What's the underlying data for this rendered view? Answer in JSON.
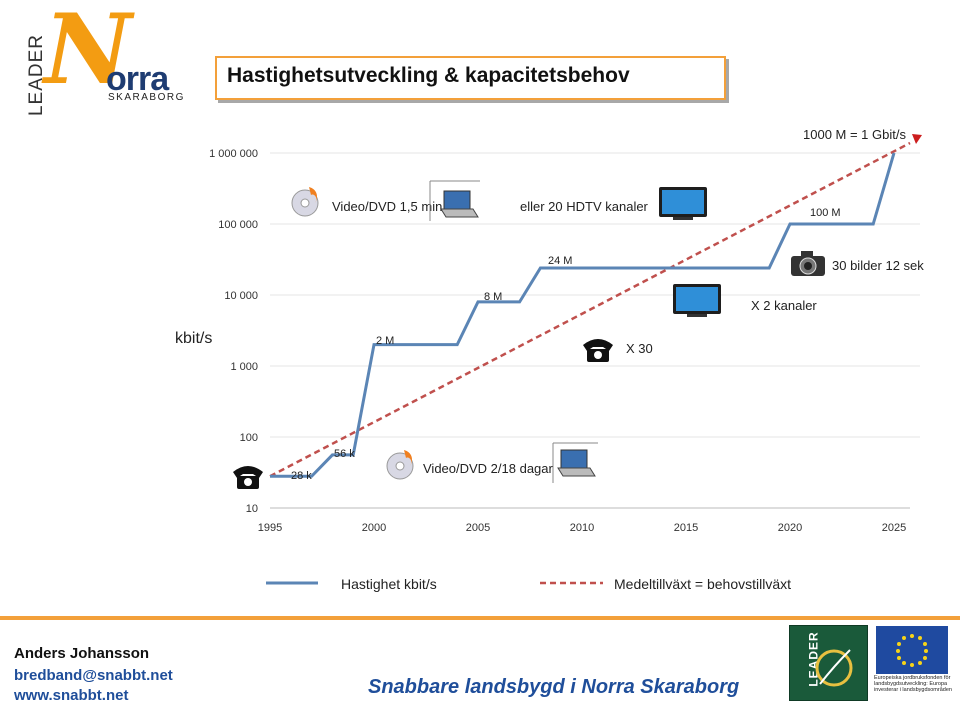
{
  "logo": {
    "leader": "LEADER",
    "n": "N",
    "orra": "orra",
    "skaraborg": "SKARABORG"
  },
  "title": "Hastighetsutveckling & kapacitetsbehov",
  "chart_data": {
    "type": "line",
    "ylabel": "kbit/s",
    "yscale": "log",
    "ylim": [
      10,
      1000000
    ],
    "xlim": [
      1995,
      2025
    ],
    "x_ticks": [
      "1995",
      "2000",
      "2005",
      "2010",
      "2015",
      "2020",
      "2025"
    ],
    "y_ticks": [
      "10",
      "100",
      "1 000",
      "10 000",
      "100 000",
      "1 000 000"
    ],
    "grid": "horizontal",
    "legend_position": "bottom",
    "series": [
      {
        "name": "Hastighet kbit/s",
        "color": "#5b85b5",
        "style": "solid",
        "points": [
          [
            1995,
            28
          ],
          [
            1997,
            28
          ],
          [
            1998,
            56
          ],
          [
            1999,
            56
          ],
          [
            2000,
            2000
          ],
          [
            2004,
            2000
          ],
          [
            2005,
            8000
          ],
          [
            2007,
            8000
          ],
          [
            2008,
            24000
          ],
          [
            2019,
            24000
          ],
          [
            2020,
            100000
          ],
          [
            2024,
            100000
          ],
          [
            2025,
            1000000
          ]
        ]
      },
      {
        "name": "Medeltillväxt = behovstillväxt",
        "color": "#c0504d",
        "style": "dashed",
        "points": [
          [
            1995,
            28
          ],
          [
            2025,
            1000000
          ]
        ]
      }
    ],
    "annotations": {
      "p28k": "28 k",
      "p56k": "56 k",
      "p2m": "2 M",
      "p8m": "8 M",
      "p24m": "24 M",
      "p100m": "100 M",
      "p1000m": "1000 M = 1 Gbit/s",
      "video15": "Video/DVD 1,5 min",
      "hdtv20": "eller 20 HDTV kanaler",
      "bilder": "30 bilder 12 sek",
      "x2": "X 2 kanaler",
      "x30": "X 30",
      "video218": "Video/DVD  2/18 dagar"
    },
    "icons": [
      "cd-icon",
      "laptop-icon",
      "tv-icon",
      "camera-icon",
      "telephone-icon"
    ]
  },
  "footer": {
    "author": "Anders Johansson",
    "email": "bredband@snabbt.net",
    "web": "www.snabbt.net",
    "slogan": "Snabbare landsbygd i Norra Skaraborg",
    "badge": "LEADER",
    "eu_text": "Europeiska jordbruksfonden för landsbygdsutveckling: Europa investerar i landsbygdsområden"
  },
  "colors": {
    "accent": "#f3a03a",
    "brand_blue": "#1f4e9a",
    "series_blue": "#5b85b5",
    "series_red": "#c0504d"
  }
}
